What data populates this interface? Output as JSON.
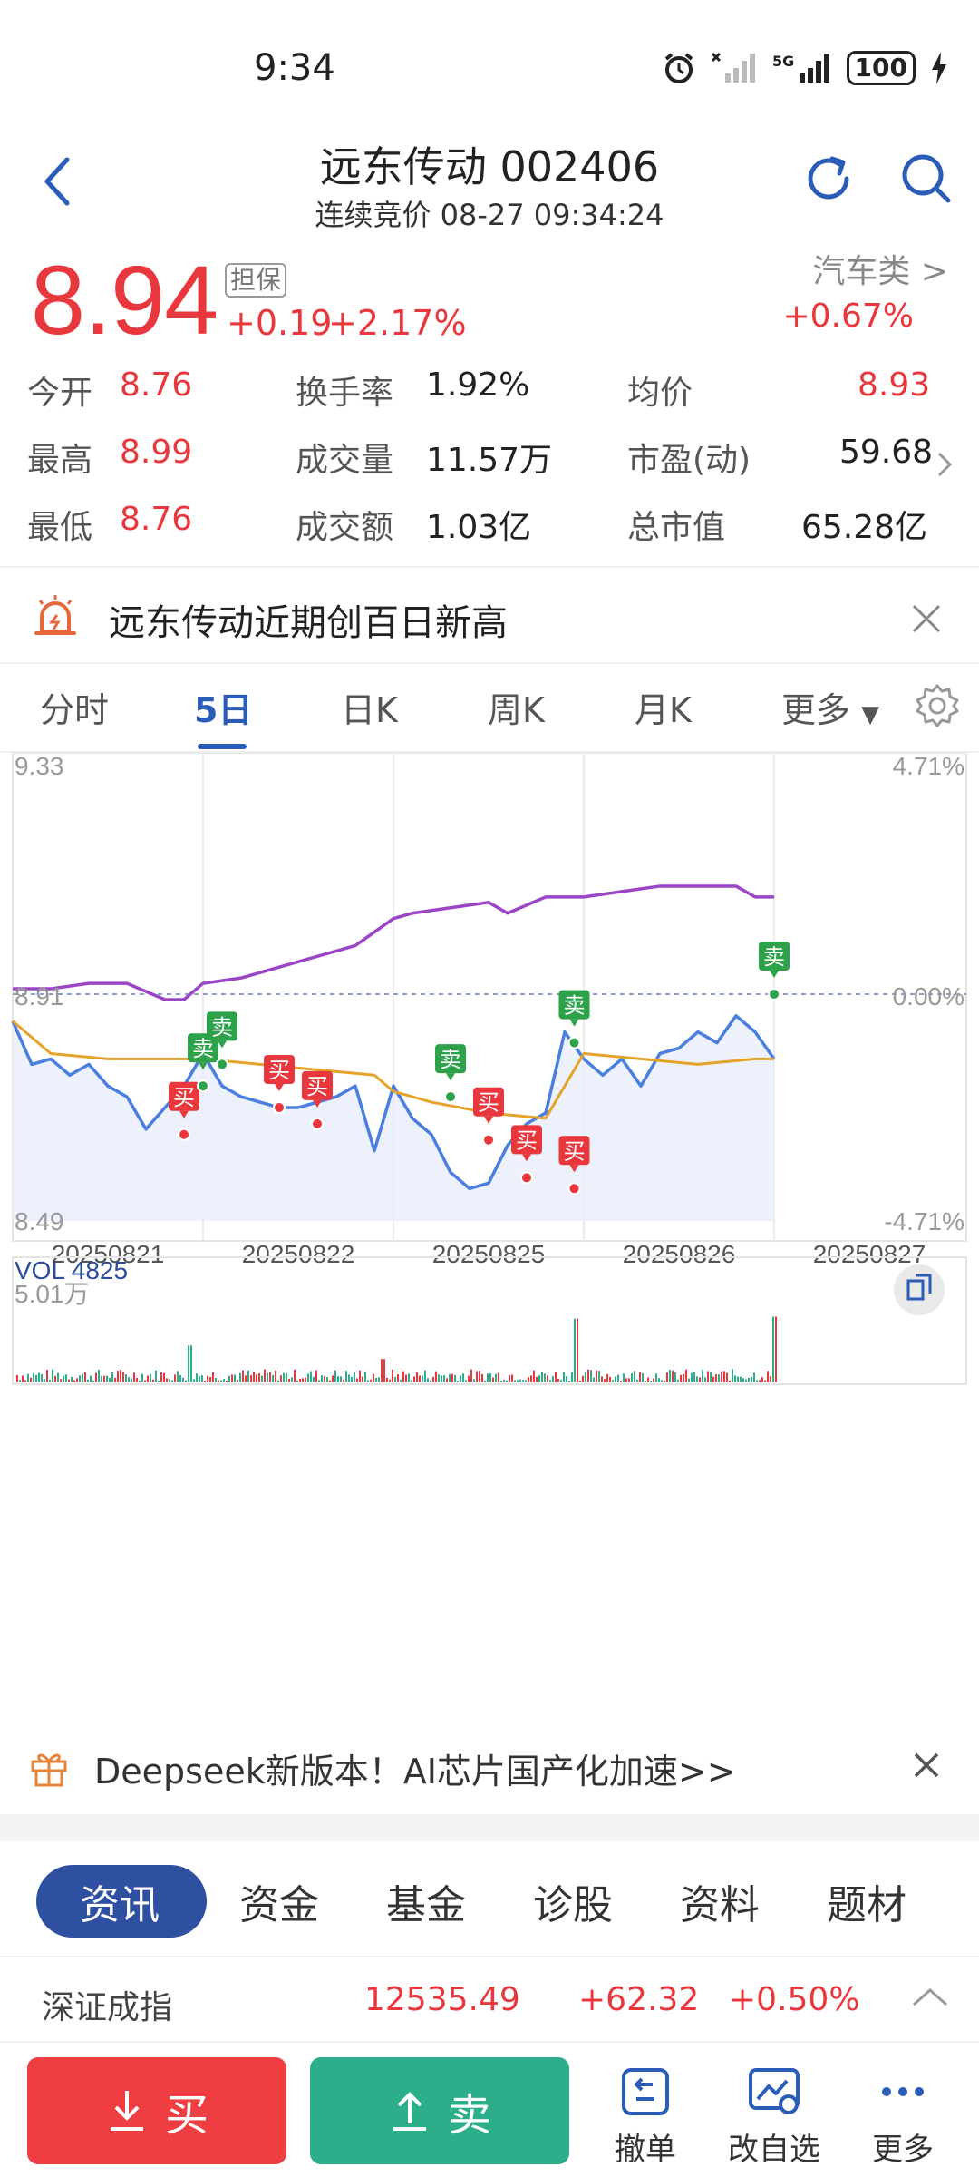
{
  "status_bar": {
    "time": "9:34",
    "battery": "100"
  },
  "header": {
    "title": "远东传动 002406",
    "subtitle": "连续竞价 08-27 09:34:24"
  },
  "quote": {
    "price": "8.94",
    "guarantee_badge": "担保",
    "change": "+0.19",
    "change_pct": "+2.17%",
    "sector_name": "汽车类",
    "sector_chevron": ">",
    "sector_pct": "+0.67%"
  },
  "stats": [
    {
      "label": "今开",
      "value": "8.76",
      "color": "red"
    },
    {
      "label": "换手率",
      "value": "1.92%",
      "color": "dark"
    },
    {
      "label": "均价",
      "value": "8.93",
      "color": "red"
    },
    {
      "label": "最高",
      "value": "8.99",
      "color": "red"
    },
    {
      "label": "成交量",
      "value": "11.57万",
      "color": "dark"
    },
    {
      "label": "市盈(动)",
      "value": "59.68",
      "color": "dark"
    },
    {
      "label": "最低",
      "value": "8.76",
      "color": "red"
    },
    {
      "label": "成交额",
      "value": "1.03亿",
      "color": "dark"
    },
    {
      "label": "总市值",
      "value": "65.28亿",
      "color": "dark"
    }
  ],
  "alert": {
    "text": "远东传动近期创百日新高"
  },
  "chart_tabs": [
    "分时",
    "5日",
    "日K",
    "周K",
    "月K",
    "更多"
  ],
  "chart_tab_active": "5日",
  "chart_data": {
    "type": "line",
    "ylim": [
      8.49,
      9.33
    ],
    "y_left_ticks": [
      "9.33",
      "8.91",
      "8.49"
    ],
    "y_right_ticks": [
      "4.71%",
      "0.00%",
      "-4.71%"
    ],
    "x_labels": [
      "20250821",
      "20250822",
      "20250825",
      "20250826",
      "20250827"
    ],
    "series": [
      {
        "name": "price",
        "color": "#4a7fe0",
        "x": [
          0.0,
          0.1,
          0.2,
          0.3,
          0.4,
          0.5,
          0.6,
          0.7,
          0.8,
          0.9,
          1.0,
          1.1,
          1.2,
          1.3,
          1.4,
          1.5,
          1.6,
          1.7,
          1.8,
          1.9,
          2.0,
          2.1,
          2.2,
          2.3,
          2.4,
          2.5,
          2.6,
          2.7,
          2.8,
          2.9,
          3.0,
          3.1,
          3.2,
          3.3,
          3.4,
          3.5,
          3.6,
          3.7,
          3.8,
          3.9,
          4.0
        ],
        "y": [
          8.86,
          8.78,
          8.79,
          8.76,
          8.78,
          8.74,
          8.72,
          8.66,
          8.7,
          8.74,
          8.8,
          8.74,
          8.72,
          8.71,
          8.7,
          8.7,
          8.71,
          8.72,
          8.74,
          8.62,
          8.74,
          8.68,
          8.65,
          8.58,
          8.55,
          8.56,
          8.63,
          8.67,
          8.69,
          8.84,
          8.79,
          8.76,
          8.79,
          8.74,
          8.8,
          8.81,
          8.84,
          8.82,
          8.87,
          8.84,
          8.79
        ]
      },
      {
        "name": "avg",
        "color": "#e4a32a",
        "x": [
          0.0,
          0.2,
          0.5,
          0.8,
          1.0,
          1.3,
          1.6,
          1.9,
          2.0,
          2.2,
          2.5,
          2.8,
          3.0,
          3.3,
          3.6,
          3.9,
          4.0
        ],
        "y": [
          8.86,
          8.8,
          8.79,
          8.79,
          8.79,
          8.78,
          8.77,
          8.76,
          8.73,
          8.71,
          8.69,
          8.68,
          8.8,
          8.79,
          8.78,
          8.79,
          8.79
        ]
      },
      {
        "name": "index",
        "color": "#9b45c7",
        "x": [
          0.0,
          0.2,
          0.4,
          0.6,
          0.8,
          0.9,
          1.0,
          1.2,
          1.4,
          1.6,
          1.8,
          2.0,
          2.1,
          2.3,
          2.5,
          2.6,
          2.8,
          3.0,
          3.2,
          3.4,
          3.6,
          3.8,
          3.9,
          4.0
        ],
        "y": [
          8.92,
          8.92,
          8.93,
          8.93,
          8.9,
          8.9,
          8.93,
          8.94,
          8.96,
          8.98,
          9.0,
          9.05,
          9.06,
          9.07,
          9.08,
          9.06,
          9.09,
          9.09,
          9.1,
          9.11,
          9.11,
          9.11,
          9.09,
          9.09
        ]
      }
    ],
    "signals": [
      {
        "label": "买",
        "type": "buy",
        "x": 0.9,
        "y": 8.65
      },
      {
        "label": "卖",
        "type": "sell",
        "x": 1.0,
        "y": 8.74
      },
      {
        "label": "卖",
        "type": "sell",
        "x": 1.1,
        "y": 8.78
      },
      {
        "label": "买",
        "type": "buy",
        "x": 1.4,
        "y": 8.7
      },
      {
        "label": "买",
        "type": "buy",
        "x": 1.6,
        "y": 8.67
      },
      {
        "label": "卖",
        "type": "sell",
        "x": 2.3,
        "y": 8.72
      },
      {
        "label": "买",
        "type": "buy",
        "x": 2.5,
        "y": 8.64
      },
      {
        "label": "买",
        "type": "buy",
        "x": 2.7,
        "y": 8.57
      },
      {
        "label": "买",
        "type": "buy",
        "x": 2.95,
        "y": 8.55
      },
      {
        "label": "卖",
        "type": "sell",
        "x": 2.95,
        "y": 8.82
      },
      {
        "label": "卖",
        "type": "sell",
        "x": 4.0,
        "y": 8.91
      }
    ],
    "volume": {
      "label": "VOL 4825",
      "max_label": "5.01万"
    }
  },
  "promo": {
    "text": "Deepseek新版本！AI芯片国产化加速>>"
  },
  "info_tabs": [
    "资讯",
    "资金",
    "基金",
    "诊股",
    "资料",
    "题材"
  ],
  "index_row": {
    "name": "深证成指",
    "value": "12535.49",
    "change": "+62.32",
    "pct": "+0.50%"
  },
  "actions": {
    "buy": "买",
    "sell": "卖",
    "cancel": "撤单",
    "edit_watch": "改自选",
    "more": "更多"
  }
}
